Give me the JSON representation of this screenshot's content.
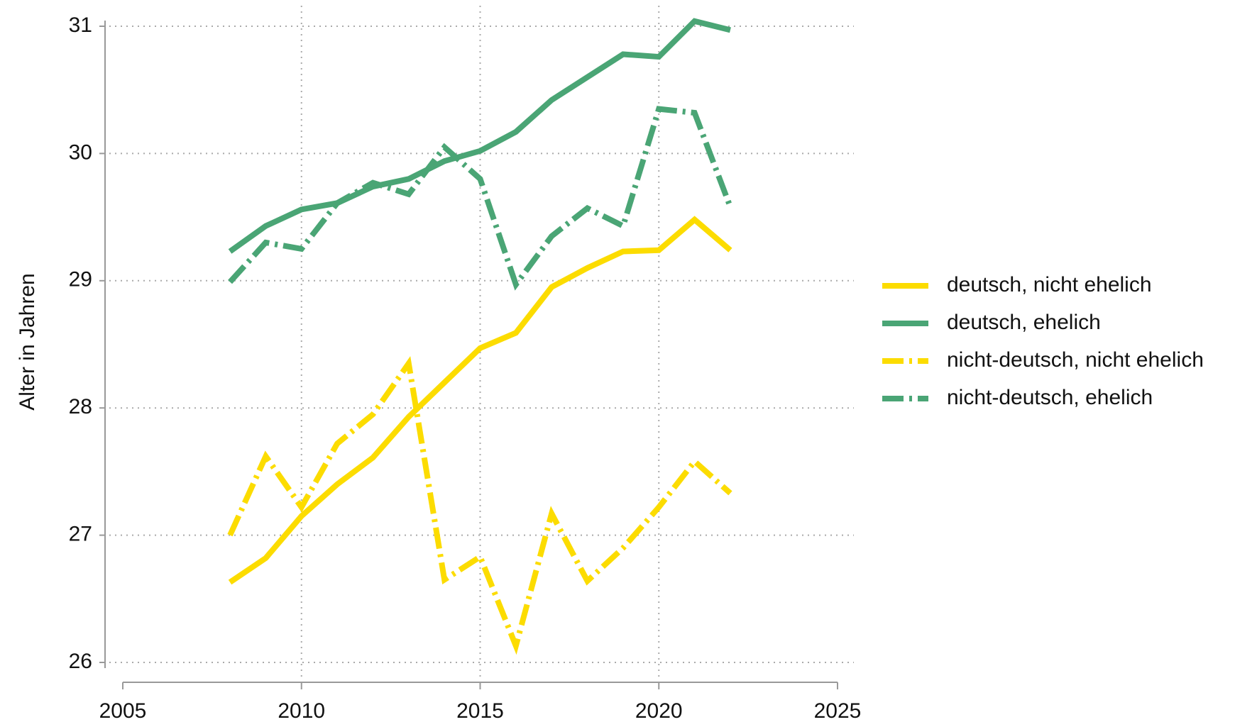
{
  "chart_data": {
    "type": "line",
    "y_label": "Alter in Jahren",
    "x": [
      2008,
      2009,
      2010,
      2011,
      2012,
      2013,
      2014,
      2015,
      2016,
      2017,
      2018,
      2019,
      2020,
      2021,
      2022
    ],
    "xlim": [
      2005,
      2025
    ],
    "xticks": [
      2005,
      2010,
      2015,
      2020,
      2025
    ],
    "ylim": [
      26,
      31
    ],
    "yticks": [
      26,
      27,
      28,
      29,
      30,
      31
    ],
    "grid": true,
    "legend": "right",
    "series": [
      {
        "name": "deutsch, nicht ehelich",
        "color": "#fcdc00",
        "style": "solid",
        "values": [
          26.63,
          26.82,
          27.15,
          27.4,
          27.61,
          27.93,
          28.2,
          28.47,
          28.59,
          28.95,
          29.1,
          29.23,
          29.24,
          29.48,
          29.24
        ]
      },
      {
        "name": "deutsch, ehelich",
        "color": "#4aa575",
        "style": "solid",
        "values": [
          29.23,
          29.43,
          29.56,
          29.61,
          29.74,
          29.8,
          29.94,
          30.02,
          30.17,
          30.42,
          30.6,
          30.78,
          30.76,
          31.04,
          30.97
        ]
      },
      {
        "name": "nicht-deutsch, nicht ehelich",
        "color": "#fcdc00",
        "style": "dashdot",
        "values": [
          27.0,
          27.62,
          27.22,
          27.72,
          27.95,
          28.35,
          26.65,
          26.83,
          26.13,
          27.17,
          26.64,
          26.9,
          27.22,
          27.58,
          27.33
        ]
      },
      {
        "name": "nicht-deutsch, ehelich",
        "color": "#4aa575",
        "style": "dashdot",
        "values": [
          28.99,
          29.3,
          29.25,
          29.61,
          29.77,
          29.68,
          30.05,
          29.8,
          28.97,
          29.35,
          29.57,
          29.43,
          30.35,
          30.32,
          29.58
        ]
      }
    ]
  }
}
